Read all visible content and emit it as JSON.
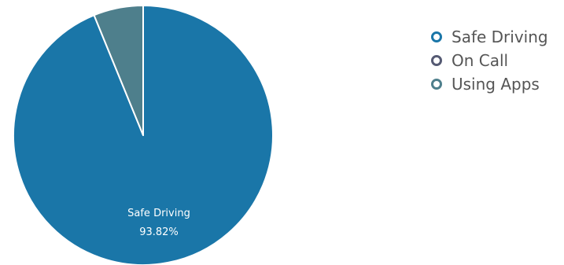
{
  "chart_data": {
    "type": "pie",
    "categories": [
      "Safe Driving",
      "On Call",
      "Using Apps"
    ],
    "values": [
      93.82,
      0,
      6.18
    ],
    "colors": [
      "#1a76a8",
      "#555a73",
      "#4e7f8c"
    ],
    "data_labels": [
      {
        "name": "Safe Driving",
        "value": "93.82%"
      }
    ],
    "legend_position": "top-right"
  }
}
